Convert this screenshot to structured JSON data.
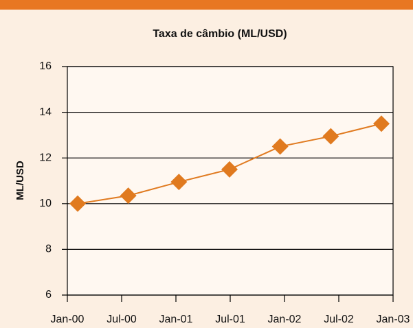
{
  "chart_data": {
    "type": "line",
    "title": "Taxa de câmbio (ML/USD)",
    "y_label": "ML/USD",
    "categories": [
      "Jan-00",
      "Jul-00",
      "Jan-01",
      "Jul-01",
      "Jan-02",
      "Jul-02",
      "Jan-03"
    ],
    "series": [
      {
        "name": "ML/USD",
        "color": "#e07a1f",
        "values": [
          10.0,
          10.35,
          10.95,
          11.5,
          12.5,
          12.95,
          13.5
        ]
      }
    ],
    "ylim": [
      6,
      16
    ],
    "yticks": [
      6,
      8,
      10,
      12,
      14,
      16
    ],
    "grid": true
  }
}
